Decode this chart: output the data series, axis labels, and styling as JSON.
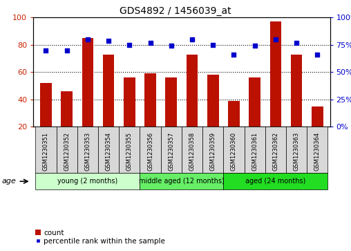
{
  "title": "GDS4892 / 1456039_at",
  "samples": [
    "GSM1230351",
    "GSM1230352",
    "GSM1230353",
    "GSM1230354",
    "GSM1230355",
    "GSM1230356",
    "GSM1230357",
    "GSM1230358",
    "GSM1230359",
    "GSM1230360",
    "GSM1230361",
    "GSM1230362",
    "GSM1230363",
    "GSM1230364"
  ],
  "counts": [
    52,
    46,
    85,
    73,
    56,
    59,
    56,
    73,
    58,
    39,
    56,
    97,
    73,
    35
  ],
  "percentiles": [
    70,
    70,
    80,
    79,
    75,
    77,
    74,
    80,
    75,
    66,
    74,
    80,
    77,
    66
  ],
  "ylim_left": [
    20,
    100
  ],
  "ylim_right": [
    0,
    100
  ],
  "yticks_left": [
    20,
    40,
    60,
    80,
    100
  ],
  "ytick_labels_right": [
    "0%",
    "25%",
    "50%",
    "75%",
    "100%"
  ],
  "yticks_right": [
    0,
    25,
    50,
    75,
    100
  ],
  "bar_color": "#bb1100",
  "dot_color": "#0000cc",
  "bar_width": 0.55,
  "groups": [
    {
      "label": "young (2 months)",
      "start": 0,
      "end": 4,
      "color": "#ccffcc"
    },
    {
      "label": "middle aged (12 months)",
      "start": 5,
      "end": 8,
      "color": "#66ee66"
    },
    {
      "label": "aged (24 months)",
      "start": 9,
      "end": 13,
      "color": "#22dd22"
    }
  ],
  "age_label": "age",
  "legend_count_label": "count",
  "legend_pct_label": "percentile rank within the sample",
  "background_color": "#ffffff",
  "plot_bg": "#ffffff",
  "tick_label_color_left": "#cc2200",
  "tick_label_color_right": "#0000cc",
  "xtick_bg_color": "#d8d8d8",
  "title_fontsize": 10
}
